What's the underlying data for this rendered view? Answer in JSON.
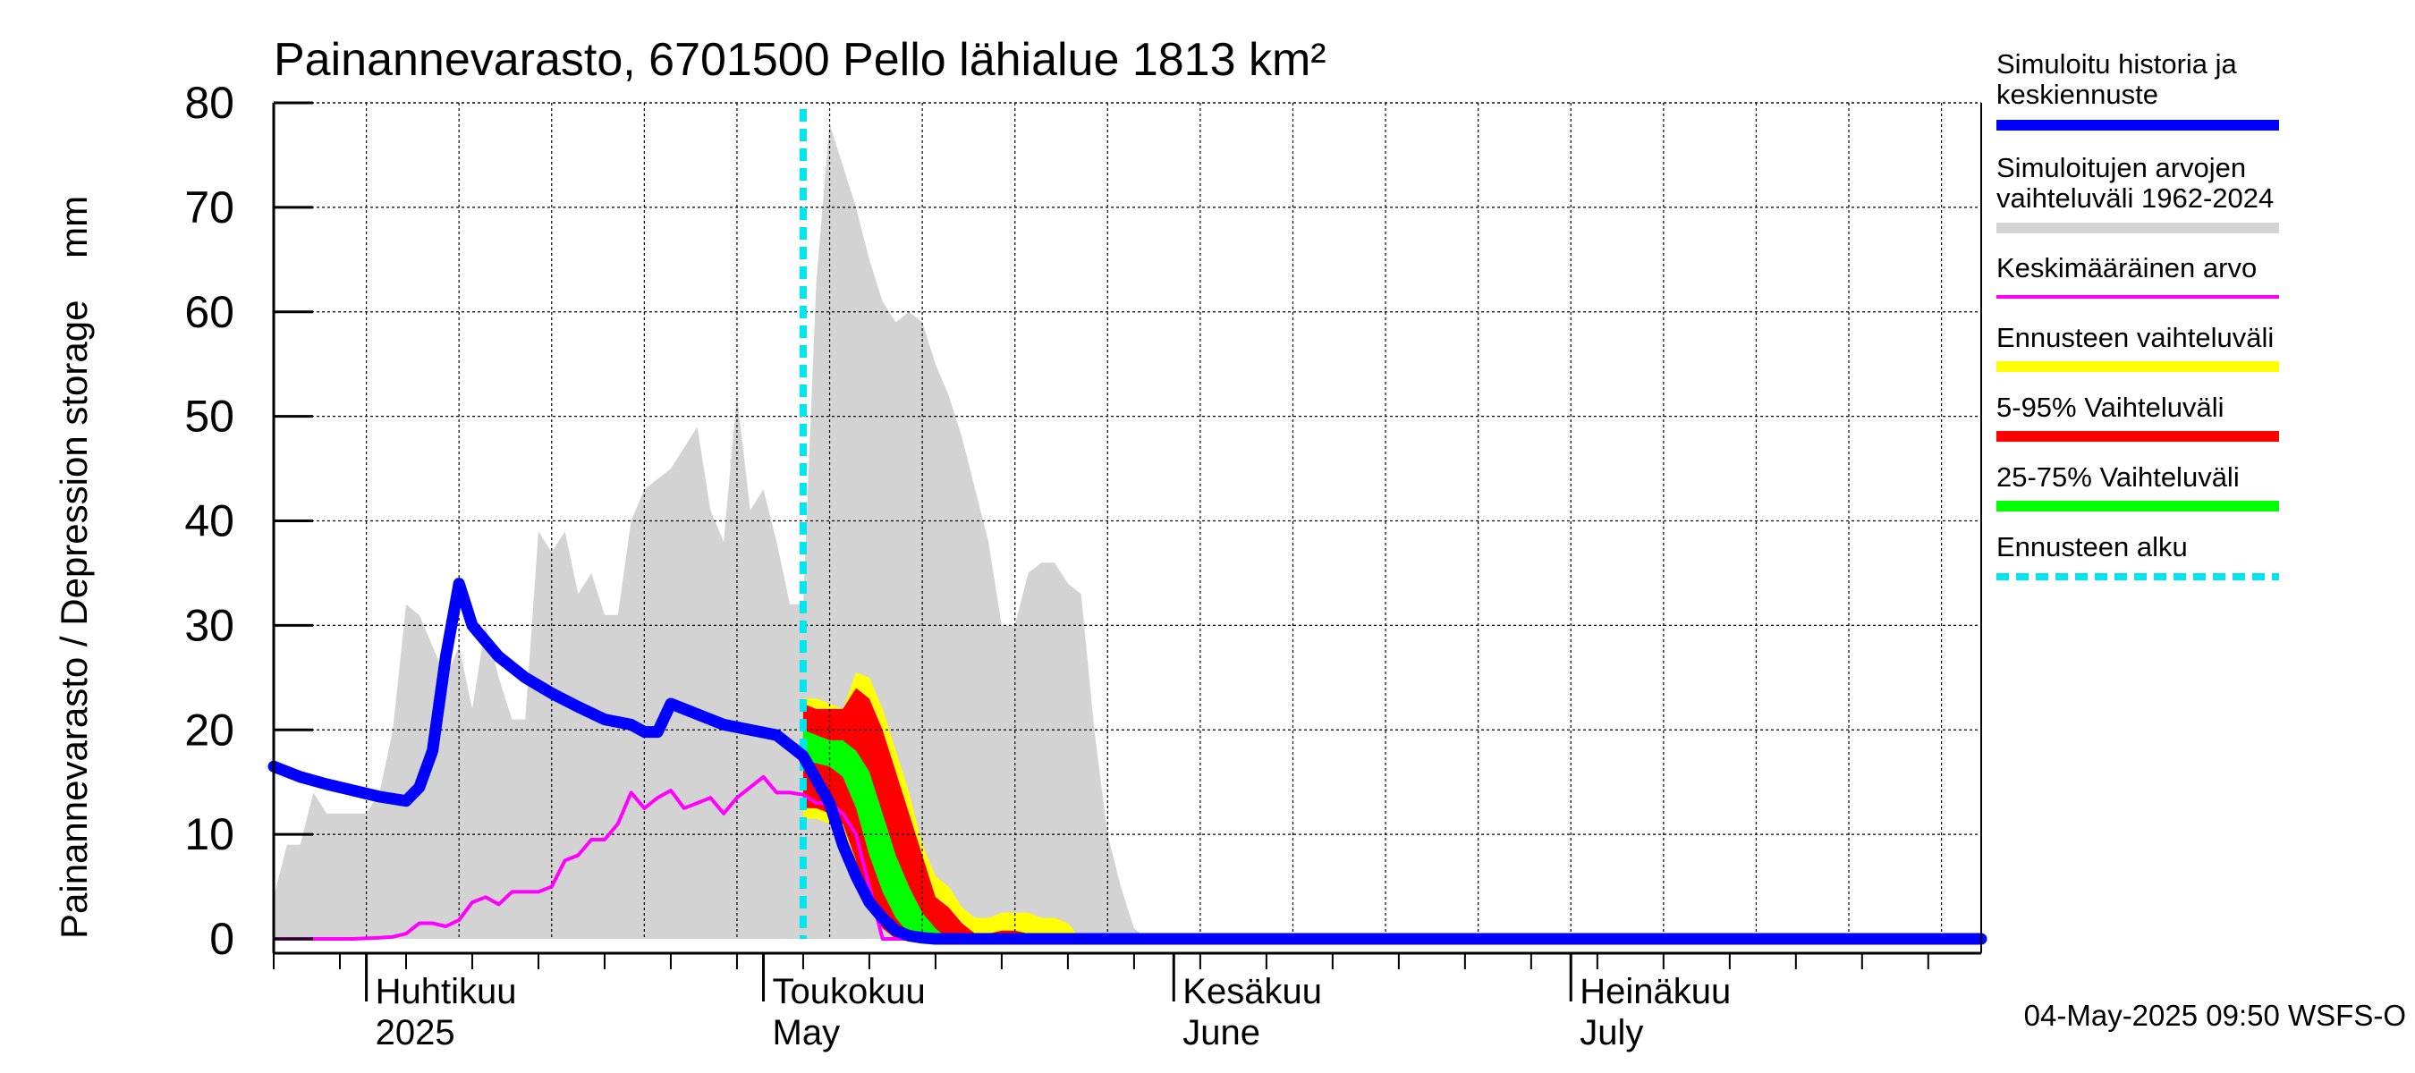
{
  "chart_data": {
    "type": "area",
    "title": "Painannevarasto, 6701500 Pello lähialue 1813 km²",
    "ylabel": "Painannevarasto / Depression storage    mm",
    "xlabel": "",
    "ylim": [
      0,
      80
    ],
    "xlim": [
      "2025-03-25",
      "2025-08-01"
    ],
    "grid": true,
    "legend_placement": "right",
    "y_ticks": [
      "0",
      "10",
      "20",
      "30",
      "40",
      "50",
      "60",
      "70",
      "80"
    ],
    "month_labels": [
      {
        "fi": "Huhtikuu",
        "en": "2025",
        "date": "2025-04-01"
      },
      {
        "fi": "Toukokuu",
        "en": "May",
        "date": "2025-05-01"
      },
      {
        "fi": "Kesäkuu",
        "en": "June",
        "date": "2025-06-01"
      },
      {
        "fi": "Heinäkuu",
        "en": "July",
        "date": "2025-07-01"
      }
    ],
    "forecast_start": "2025-05-04",
    "timestamp": "04-May-2025 09:50 WSFS-O",
    "legend": [
      {
        "label": "Simuloitu historia ja keskiennuste",
        "color": "#0000ff"
      },
      {
        "label": "Simuloitujen arvojen vaihteluväli 1962-2024",
        "color": "#d3d3d3"
      },
      {
        "label": "Keskimääräinen arvo",
        "color": "#ff00ff"
      },
      {
        "label": "Ennusteen vaihteluväli",
        "color": "#ffff00"
      },
      {
        "label": "5-95% Vaihteluväli",
        "color": "#ff0000"
      },
      {
        "label": "25-75% Vaihteluväli",
        "color": "#00ff00"
      },
      {
        "label": "Ennusteen alku",
        "color": "#00e5ee"
      }
    ],
    "series": [
      {
        "name": "Simuloitujen arvojen vaihteluväli 1962-2024",
        "kind": "area",
        "x": [
          "2025-03-25",
          "2025-03-26",
          "2025-03-27",
          "2025-03-28",
          "2025-03-29",
          "2025-03-30",
          "2025-03-31",
          "2025-04-01",
          "2025-04-02",
          "2025-04-03",
          "2025-04-04",
          "2025-04-05",
          "2025-04-06",
          "2025-04-07",
          "2025-04-08",
          "2025-04-09",
          "2025-04-10",
          "2025-04-11",
          "2025-04-12",
          "2025-04-13",
          "2025-04-14",
          "2025-04-15",
          "2025-04-16",
          "2025-04-17",
          "2025-04-18",
          "2025-04-19",
          "2025-04-20",
          "2025-04-21",
          "2025-04-22",
          "2025-04-23",
          "2025-04-24",
          "2025-04-25",
          "2025-04-26",
          "2025-04-27",
          "2025-04-28",
          "2025-04-29",
          "2025-04-30",
          "2025-05-01",
          "2025-05-02",
          "2025-05-03",
          "2025-05-04",
          "2025-05-05",
          "2025-05-06",
          "2025-05-07",
          "2025-05-08",
          "2025-05-09",
          "2025-05-10",
          "2025-05-11",
          "2025-05-12",
          "2025-05-13",
          "2025-05-14",
          "2025-05-15",
          "2025-05-16",
          "2025-05-17",
          "2025-05-18",
          "2025-05-19",
          "2025-05-20",
          "2025-05-21",
          "2025-05-22",
          "2025-05-23",
          "2025-05-24",
          "2025-05-25",
          "2025-05-26",
          "2025-05-27",
          "2025-05-28",
          "2025-05-29",
          "2025-05-30",
          "2025-05-31",
          "2025-06-01",
          "2025-06-02",
          "2025-06-03",
          "2025-06-04",
          "2025-06-05",
          "2025-06-06",
          "2025-06-07"
        ],
        "upper": [
          4,
          9,
          9,
          14,
          12,
          12,
          12,
          12,
          14,
          20,
          32,
          31,
          28,
          25,
          28,
          22,
          30,
          25,
          21,
          21,
          39,
          37,
          39,
          33,
          35,
          31,
          31,
          40,
          43,
          44,
          45,
          47,
          49,
          41,
          38,
          52,
          41,
          43,
          38,
          32,
          32,
          63,
          78,
          74,
          70,
          65,
          61,
          59,
          60,
          59,
          55,
          52,
          48,
          43,
          38,
          30,
          30,
          35,
          36,
          36,
          34,
          33,
          20,
          10,
          5,
          1,
          0,
          0,
          0,
          0,
          0,
          0,
          0,
          0,
          0
        ],
        "lower": [
          0,
          0,
          0,
          0,
          0,
          0,
          0,
          0,
          0,
          0,
          0,
          0,
          0,
          0,
          0,
          0,
          0,
          0,
          0,
          0,
          0,
          0,
          0,
          0,
          0,
          0,
          0,
          0,
          0,
          0,
          0,
          0,
          0,
          0,
          0,
          0,
          0,
          0,
          0,
          0,
          0,
          0,
          0,
          0,
          0,
          0,
          0,
          0,
          0,
          0,
          0,
          0,
          0,
          0,
          0,
          0,
          0,
          0,
          0,
          0,
          0,
          0,
          0,
          0,
          0,
          0,
          0,
          0,
          0,
          0,
          0,
          0,
          0,
          0,
          0
        ]
      },
      {
        "name": "Keskimääräinen arvo",
        "kind": "line",
        "x": [
          "2025-03-25",
          "2025-03-28",
          "2025-03-31",
          "2025-04-02",
          "2025-04-03",
          "2025-04-04",
          "2025-04-05",
          "2025-04-06",
          "2025-04-07",
          "2025-04-08",
          "2025-04-09",
          "2025-04-10",
          "2025-04-11",
          "2025-04-12",
          "2025-04-13",
          "2025-04-14",
          "2025-04-15",
          "2025-04-16",
          "2025-04-17",
          "2025-04-18",
          "2025-04-19",
          "2025-04-20",
          "2025-04-21",
          "2025-04-22",
          "2025-04-23",
          "2025-04-24",
          "2025-04-25",
          "2025-04-26",
          "2025-04-27",
          "2025-04-28",
          "2025-04-29",
          "2025-04-30",
          "2025-05-01",
          "2025-05-02",
          "2025-05-03",
          "2025-05-04",
          "2025-05-05",
          "2025-05-06",
          "2025-05-07",
          "2025-05-08",
          "2025-05-09",
          "2025-05-10",
          "2025-05-11",
          "2025-05-12",
          "2025-05-13",
          "2025-05-14",
          "2025-05-15",
          "2025-05-16",
          "2025-05-17",
          "2025-05-18",
          "2025-05-19",
          "2025-05-20",
          "2025-05-21",
          "2025-08-01"
        ],
        "values": [
          0,
          0,
          0,
          0.1,
          0.2,
          0.5,
          1.5,
          1.5,
          1.2,
          1.8,
          3.5,
          4,
          3.3,
          4.5,
          4.5,
          4.5,
          5,
          7.5,
          8,
          9.5,
          9.5,
          11,
          14,
          12.5,
          13.5,
          14.2,
          12.5,
          13,
          13.5,
          12,
          13.5,
          14.5,
          15.5,
          14,
          14,
          13.8,
          13,
          13,
          12,
          10,
          5,
          0,
          0,
          0,
          0,
          0,
          0,
          0,
          0,
          0,
          0,
          0,
          0,
          0
        ]
      },
      {
        "name": "Ennusteen vaihteluväli",
        "kind": "band",
        "x": [
          "2025-05-04",
          "2025-05-05",
          "2025-05-06",
          "2025-05-07",
          "2025-05-08",
          "2025-05-09",
          "2025-05-10",
          "2025-05-11",
          "2025-05-12",
          "2025-05-13",
          "2025-05-14",
          "2025-05-15",
          "2025-05-16",
          "2025-05-17",
          "2025-05-18",
          "2025-05-19",
          "2025-05-20",
          "2025-05-21",
          "2025-05-22",
          "2025-05-23",
          "2025-05-24",
          "2025-05-25",
          "2025-05-26",
          "2025-05-27"
        ],
        "upper": [
          23,
          23,
          22.5,
          22,
          25.5,
          25,
          22,
          18,
          14,
          9,
          6,
          5,
          3,
          2,
          2,
          2.5,
          2.5,
          2.5,
          2,
          2,
          1.5,
          0,
          0,
          0
        ],
        "lower": [
          11.5,
          11.5,
          11,
          10,
          7,
          4,
          1.5,
          0.5,
          0,
          0,
          0,
          0,
          0,
          0,
          0,
          0,
          0,
          0,
          0,
          0,
          0,
          0,
          0,
          0
        ]
      },
      {
        "name": "5-95% Vaihteluväli",
        "kind": "band",
        "x": [
          "2025-05-04",
          "2025-05-05",
          "2025-05-06",
          "2025-05-07",
          "2025-05-08",
          "2025-05-09",
          "2025-05-10",
          "2025-05-11",
          "2025-05-12",
          "2025-05-13",
          "2025-05-14",
          "2025-05-15",
          "2025-05-16",
          "2025-05-17",
          "2025-05-18",
          "2025-05-19",
          "2025-05-20",
          "2025-05-21",
          "2025-05-22",
          "2025-05-23",
          "2025-05-24"
        ],
        "upper": [
          22.5,
          22,
          22,
          22,
          24,
          23,
          20,
          16,
          12,
          8,
          4,
          3,
          1.5,
          0.5,
          0.5,
          0.8,
          0.8,
          0.5,
          0,
          0,
          0
        ],
        "lower": [
          12.5,
          12.5,
          12,
          11,
          7.5,
          3,
          1,
          0,
          0,
          0,
          0,
          0,
          0,
          0,
          0,
          0,
          0,
          0,
          0,
          0,
          0
        ]
      },
      {
        "name": "25-75% Vaihteluväli",
        "kind": "band",
        "x": [
          "2025-05-04",
          "2025-05-05",
          "2025-05-06",
          "2025-05-07",
          "2025-05-08",
          "2025-05-09",
          "2025-05-10",
          "2025-05-11",
          "2025-05-12",
          "2025-05-13",
          "2025-05-14",
          "2025-05-15",
          "2025-05-16"
        ],
        "upper": [
          20,
          19.5,
          19,
          19,
          18,
          16,
          12,
          8,
          5,
          2.5,
          1,
          0,
          0
        ],
        "lower": [
          17,
          16.8,
          16.5,
          15.5,
          12.5,
          8,
          4.5,
          2,
          0.5,
          0,
          0,
          0,
          0
        ]
      },
      {
        "name": "Simuloitu historia ja keskiennuste",
        "kind": "line",
        "x": [
          "2025-03-25",
          "2025-03-27",
          "2025-03-29",
          "2025-03-31",
          "2025-04-02",
          "2025-04-04",
          "2025-04-05",
          "2025-04-06",
          "2025-04-07",
          "2025-04-08",
          "2025-04-09",
          "2025-04-11",
          "2025-04-13",
          "2025-04-15",
          "2025-04-17",
          "2025-04-19",
          "2025-04-21",
          "2025-04-22",
          "2025-04-23",
          "2025-04-24",
          "2025-04-27",
          "2025-04-28",
          "2025-04-30",
          "2025-05-02",
          "2025-05-04",
          "2025-05-06",
          "2025-05-07",
          "2025-05-08",
          "2025-05-09",
          "2025-05-10",
          "2025-05-11",
          "2025-05-12",
          "2025-05-13",
          "2025-05-14",
          "2025-05-15",
          "2025-08-01"
        ],
        "values": [
          16.5,
          15.5,
          14.8,
          14.2,
          13.6,
          13.2,
          14.5,
          18,
          27,
          34,
          30,
          27,
          25,
          23.5,
          22.2,
          21,
          20.5,
          19.8,
          19.8,
          22.5,
          21,
          20.5,
          20,
          19.5,
          17.5,
          13,
          9,
          6,
          3.5,
          2,
          0.8,
          0.3,
          0.1,
          0,
          0,
          0
        ]
      }
    ]
  }
}
